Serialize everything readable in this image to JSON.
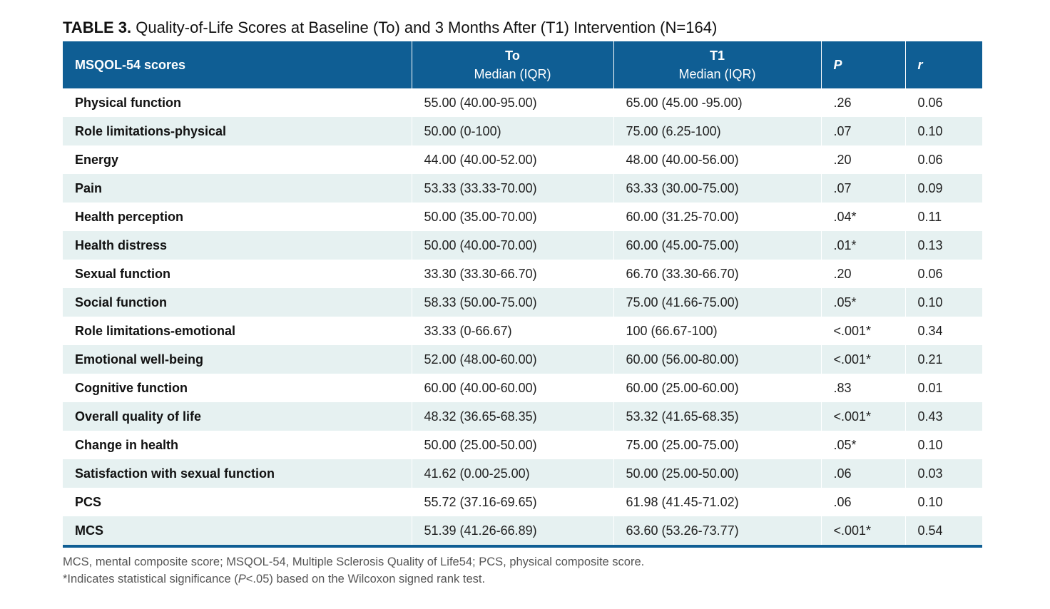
{
  "caption": {
    "label": "TABLE 3.",
    "text": "Quality-of-Life Scores at Baseline (To) and 3 Months After (T1) Intervention (N=164)"
  },
  "table": {
    "headers": {
      "scores": "MSQOL-54 scores",
      "t0_main": "To",
      "t0_sub": "Median (IQR)",
      "t1_main": "T1",
      "t1_sub": "Median (IQR)",
      "p": "P",
      "r": "r"
    },
    "rows": [
      {
        "name": "Physical function",
        "t0": "55.00 (40.00-95.00)",
        "t1": "65.00 (45.00 -95.00)",
        "p": ".26",
        "r": "0.06"
      },
      {
        "name": "Role limitations-physical",
        "t0": "50.00 (0-100)",
        "t1": "75.00 (6.25-100)",
        "p": ".07",
        "r": "0.10"
      },
      {
        "name": "Energy",
        "t0": "44.00 (40.00-52.00)",
        "t1": "48.00 (40.00-56.00)",
        "p": ".20",
        "r": "0.06"
      },
      {
        "name": "Pain",
        "t0": "53.33 (33.33-70.00)",
        "t1": "63.33 (30.00-75.00)",
        "p": ".07",
        "r": "0.09"
      },
      {
        "name": "Health perception",
        "t0": "50.00 (35.00-70.00)",
        "t1": "60.00 (31.25-70.00)",
        "p": ".04*",
        "r": "0.11"
      },
      {
        "name": "Health distress",
        "t0": "50.00 (40.00-70.00)",
        "t1": "60.00 (45.00-75.00)",
        "p": ".01*",
        "r": "0.13"
      },
      {
        "name": "Sexual function",
        "t0": "33.30 (33.30-66.70)",
        "t1": "66.70 (33.30-66.70)",
        "p": ".20",
        "r": "0.06"
      },
      {
        "name": "Social function",
        "t0": "58.33 (50.00-75.00)",
        "t1": "75.00 (41.66-75.00)",
        "p": ".05*",
        "r": "0.10"
      },
      {
        "name": "Role limitations-emotional",
        "t0": "33.33 (0-66.67)",
        "t1": "100 (66.67-100)",
        "p": "<.001*",
        "r": "0.34"
      },
      {
        "name": "Emotional well-being",
        "t0": "52.00 (48.00-60.00)",
        "t1": "60.00 (56.00-80.00)",
        "p": "<.001*",
        "r": "0.21"
      },
      {
        "name": "Cognitive function",
        "t0": "60.00 (40.00-60.00)",
        "t1": "60.00 (25.00-60.00)",
        "p": ".83",
        "r": "0.01"
      },
      {
        "name": "Overall quality of life",
        "t0": "48.32 (36.65-68.35)",
        "t1": "53.32 (41.65-68.35)",
        "p": "<.001*",
        "r": "0.43"
      },
      {
        "name": "Change in health",
        "t0": "50.00 (25.00-50.00)",
        "t1": "75.00 (25.00-75.00)",
        "p": ".05*",
        "r": "0.10"
      },
      {
        "name": "Satisfaction with sexual function",
        "t0": "41.62 (0.00-25.00)",
        "t1": "50.00 (25.00-50.00)",
        "p": ".06",
        "r": "0.03"
      },
      {
        "name": "PCS",
        "t0": "55.72 (37.16-69.65)",
        "t1": "61.98 (41.45-71.02)",
        "p": ".06",
        "r": "0.10"
      },
      {
        "name": "MCS",
        "t0": "51.39 (41.26-66.89)",
        "t1": "63.60 (53.26-73.77)",
        "p": "<.001*",
        "r": "0.54"
      }
    ]
  },
  "footnotes": {
    "line1": "MCS, mental composite score; MSQOL-54, Multiple Sclerosis Quality of Life54; PCS, physical composite score.",
    "line2_pre": "*Indicates statistical significance (",
    "line2_it": "P",
    "line2_post": "<.05) based on the Wilcoxon signed rank test."
  },
  "colors": {
    "header_bg": "#0f5e94",
    "stripe": "#e6f1f1"
  }
}
